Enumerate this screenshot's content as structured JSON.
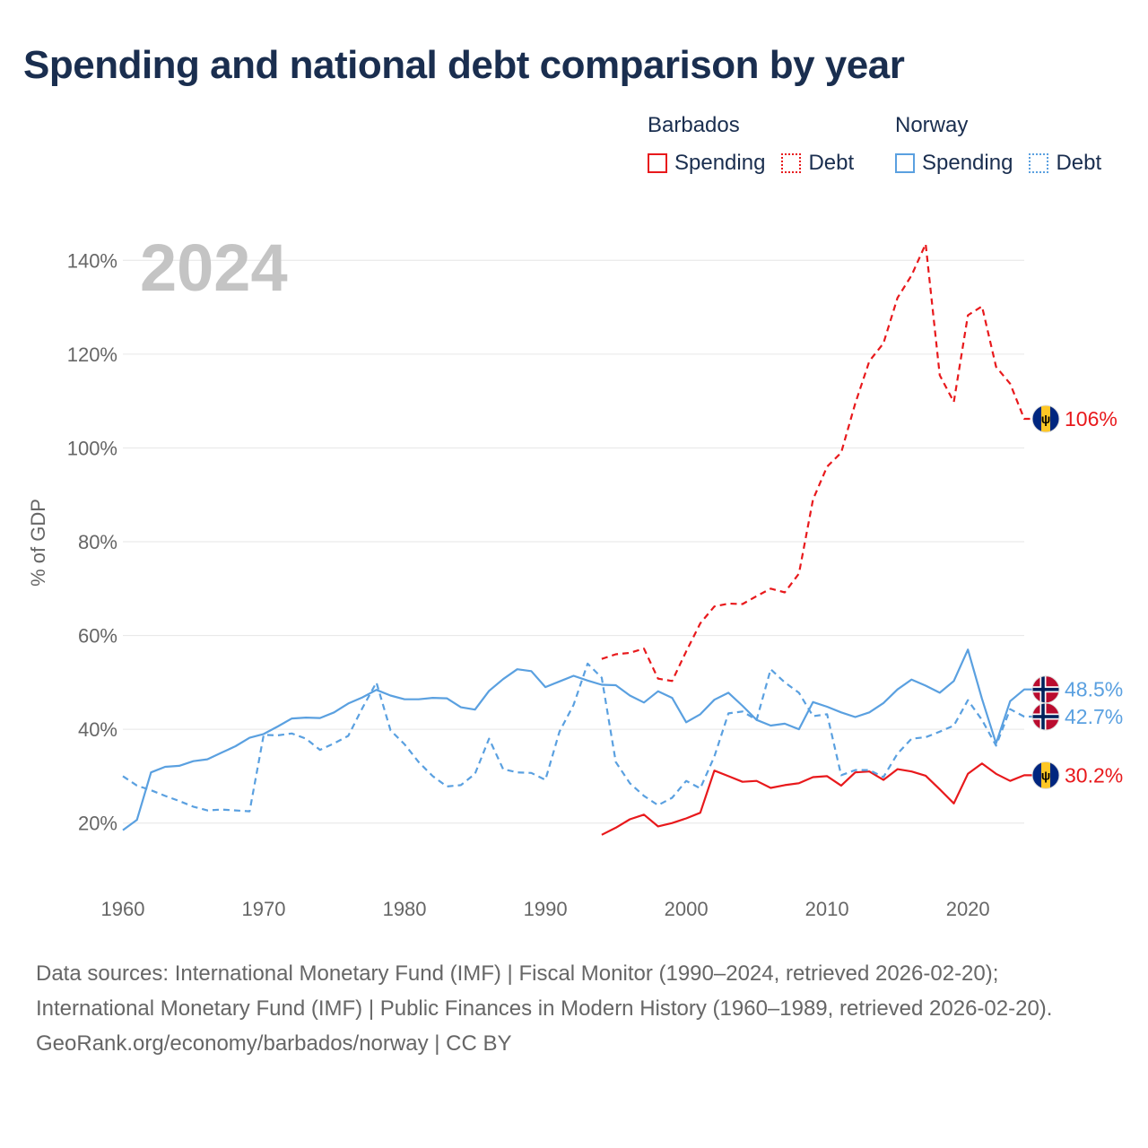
{
  "title": "Spending and national debt comparison by year",
  "legend": {
    "groups": [
      {
        "name": "Barbados",
        "items": [
          {
            "label": "Spending",
            "style": "solid",
            "color": "#e8191c"
          },
          {
            "label": "Debt",
            "style": "dotted",
            "color": "#e8191c"
          }
        ]
      },
      {
        "name": "Norway",
        "items": [
          {
            "label": "Spending",
            "style": "solid",
            "color": "#5aa0e0"
          },
          {
            "label": "Debt",
            "style": "dotted",
            "color": "#5aa0e0"
          }
        ]
      }
    ]
  },
  "footer": {
    "sources": "Data sources: International Monetary Fund (IMF) | Fiscal Monitor (1990–2024, retrieved 2026-02-20); International Monetary Fund (IMF) | Public Finances in Modern History (1960–1989, retrieved 2026-02-20).",
    "attribution": "GeoRank.org/economy/barbados/norway | CC BY"
  },
  "colors": {
    "barbados": "#e8191c",
    "norway": "#5aa0e0",
    "title": "#1a2e4f",
    "axis_text": "#666666",
    "year_watermark": "#c4c4c4",
    "grid": "#e6e6e6"
  },
  "chart_data": {
    "type": "line",
    "title": "Spending and national debt comparison by year",
    "year_label": "2024",
    "xlabel": "",
    "ylabel": "% of GDP",
    "xlim": [
      1960,
      2024
    ],
    "ylim": [
      10,
      150
    ],
    "xticks": [
      1960,
      1970,
      1980,
      1990,
      2000,
      2010,
      2020
    ],
    "yticks": [
      20,
      40,
      60,
      80,
      100,
      120,
      140
    ],
    "grid": true,
    "series": [
      {
        "name": "Barbados Spending",
        "country": "Barbados",
        "metric": "Spending",
        "dashed": false,
        "color": "#e8191c",
        "end_label": "30.2%",
        "flag": "barbados",
        "x": [
          1994,
          1995,
          1996,
          1997,
          1998,
          1999,
          2000,
          2001,
          2002,
          2003,
          2004,
          2005,
          2006,
          2007,
          2008,
          2009,
          2010,
          2011,
          2012,
          2013,
          2014,
          2015,
          2016,
          2017,
          2018,
          2019,
          2020,
          2021,
          2022,
          2023,
          2024
        ],
        "values": [
          17.5,
          19,
          20.8,
          21.8,
          19.3,
          20,
          21,
          22.2,
          31.2,
          30,
          28.8,
          29,
          27.5,
          28.1,
          28.5,
          29.8,
          30,
          28,
          30.8,
          31,
          29.2,
          31.5,
          31,
          30.1,
          27.2,
          24.2,
          30.5,
          32.7,
          30.5,
          29,
          30.2
        ]
      },
      {
        "name": "Barbados Debt",
        "country": "Barbados",
        "metric": "Debt",
        "dashed": true,
        "color": "#e8191c",
        "end_label": "106%",
        "flag": "barbados",
        "x": [
          1994,
          1995,
          1996,
          1997,
          1998,
          1999,
          2000,
          2001,
          2002,
          2003,
          2004,
          2005,
          2006,
          2007,
          2008,
          2009,
          2010,
          2011,
          2012,
          2013,
          2014,
          2015,
          2016,
          2017,
          2018,
          2019,
          2020,
          2021,
          2022,
          2023,
          2024
        ],
        "values": [
          55,
          56,
          56.3,
          57.2,
          50.8,
          50.3,
          56.6,
          62.6,
          66.2,
          66.8,
          66.7,
          68.4,
          70,
          69.2,
          73.2,
          89,
          96,
          99,
          109.5,
          118.5,
          122.3,
          132,
          136.8,
          143.5,
          115.5,
          109.8,
          128.3,
          130.2,
          117.3,
          113.7,
          106.2
        ]
      },
      {
        "name": "Norway Spending",
        "country": "Norway",
        "metric": "Spending",
        "dashed": false,
        "color": "#5aa0e0",
        "end_label": "48.5%",
        "flag": "norway",
        "x": [
          1960,
          1961,
          1962,
          1963,
          1964,
          1965,
          1966,
          1967,
          1968,
          1969,
          1970,
          1971,
          1972,
          1973,
          1974,
          1975,
          1976,
          1977,
          1978,
          1979,
          1980,
          1981,
          1982,
          1983,
          1984,
          1985,
          1986,
          1987,
          1988,
          1989,
          1990,
          1991,
          1992,
          1993,
          1994,
          1995,
          1996,
          1997,
          1998,
          1999,
          2000,
          2001,
          2002,
          2003,
          2004,
          2005,
          2006,
          2007,
          2008,
          2009,
          2010,
          2011,
          2012,
          2013,
          2014,
          2015,
          2016,
          2017,
          2018,
          2019,
          2020,
          2021,
          2022,
          2023,
          2024
        ],
        "values": [
          18.5,
          20.7,
          30.8,
          32,
          32.2,
          33.2,
          33.6,
          35,
          36.4,
          38.2,
          39,
          40.6,
          42.3,
          42.5,
          42.4,
          43.6,
          45.5,
          46.8,
          48.4,
          47.2,
          46.4,
          46.4,
          46.7,
          46.6,
          44.7,
          44.2,
          48.2,
          50.7,
          52.8,
          52.4,
          49,
          50.2,
          51.4,
          50.4,
          49.5,
          49.4,
          47.2,
          45.7,
          48.1,
          46.7,
          41.5,
          43.2,
          46.3,
          47.8,
          45,
          42,
          40.8,
          41.2,
          40,
          45.8,
          44.8,
          43.6,
          42.6,
          43.6,
          45.6,
          48.5,
          50.6,
          49.3,
          47.8,
          50.3,
          57,
          46.5,
          37,
          46,
          48.5
        ]
      },
      {
        "name": "Norway Debt",
        "country": "Norway",
        "metric": "Debt",
        "dashed": true,
        "color": "#5aa0e0",
        "end_label": "42.7%",
        "flag": "norway",
        "x": [
          1960,
          1961,
          1962,
          1963,
          1964,
          1965,
          1966,
          1967,
          1968,
          1969,
          1970,
          1971,
          1972,
          1973,
          1974,
          1975,
          1976,
          1977,
          1978,
          1979,
          1980,
          1981,
          1982,
          1983,
          1984,
          1985,
          1986,
          1987,
          1988,
          1989,
          1990,
          1991,
          1992,
          1993,
          1994,
          1995,
          1996,
          1997,
          1998,
          1999,
          2000,
          2001,
          2002,
          2003,
          2004,
          2005,
          2006,
          2007,
          2008,
          2009,
          2010,
          2011,
          2012,
          2013,
          2014,
          2015,
          2016,
          2017,
          2018,
          2019,
          2020,
          2021,
          2022,
          2023,
          2024
        ],
        "values": [
          30,
          28,
          27,
          25.8,
          24.7,
          23.5,
          22.7,
          22.9,
          22.7,
          22.5,
          38.8,
          38.7,
          39.1,
          38,
          35.6,
          37,
          38.6,
          44.5,
          50,
          39.8,
          36.8,
          33,
          30,
          27.8,
          28.1,
          30.5,
          38,
          31.5,
          30.8,
          30.7,
          29.2,
          39.5,
          45.2,
          54,
          51,
          33,
          28.5,
          25.8,
          23.8,
          25.4,
          29,
          27.4,
          34.2,
          43.4,
          43.8,
          42,
          52.8,
          50,
          47.8,
          42.8,
          43.2,
          30.2,
          31.3,
          31.3,
          29.8,
          34.8,
          38,
          38.3,
          39.5,
          40.8,
          46.2,
          42,
          36.5,
          44.3,
          42.7
        ]
      }
    ]
  }
}
